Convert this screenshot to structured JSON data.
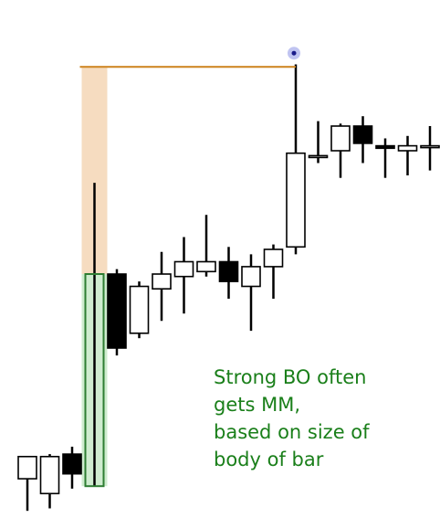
{
  "chart_data": {
    "type": "candlestick",
    "title": "",
    "xlabel": "",
    "ylabel": "",
    "ylim": [
      0,
      100
    ],
    "grid": false,
    "legend": "none",
    "candles": [
      {
        "open": 8.5,
        "high": 13.0,
        "low": 2.0,
        "close": 13.0
      },
      {
        "open": 5.5,
        "high": 13.5,
        "low": 2.5,
        "close": 13.0
      },
      {
        "open": 13.5,
        "high": 15.0,
        "low": 6.5,
        "close": 9.5
      },
      {
        "open": 7.0,
        "high": 68.5,
        "low": 7.0,
        "close": 50.0
      },
      {
        "open": 50.0,
        "high": 51.0,
        "low": 33.5,
        "close": 35.0
      },
      {
        "open": 38.0,
        "high": 48.5,
        "low": 37.0,
        "close": 47.5
      },
      {
        "open": 47.0,
        "high": 54.5,
        "low": 40.5,
        "close": 50.0
      },
      {
        "open": 49.5,
        "high": 57.5,
        "low": 42.0,
        "close": 52.5
      },
      {
        "open": 50.5,
        "high": 62.0,
        "low": 49.5,
        "close": 52.5
      },
      {
        "open": 52.5,
        "high": 55.5,
        "low": 45.0,
        "close": 48.5
      },
      {
        "open": 47.5,
        "high": 54.0,
        "low": 38.5,
        "close": 51.5
      },
      {
        "open": 51.5,
        "high": 56.0,
        "low": 45.0,
        "close": 55.0
      },
      {
        "open": 55.5,
        "high": 92.5,
        "low": 54.0,
        "close": 74.5
      },
      {
        "open": 74.0,
        "high": 81.0,
        "low": 72.5,
        "close": 74.0
      },
      {
        "open": 75.0,
        "high": 80.5,
        "low": 69.5,
        "close": 80.0
      },
      {
        "open": 80.0,
        "high": 82.0,
        "low": 72.5,
        "close": 76.5
      },
      {
        "open": 76.0,
        "high": 77.5,
        "low": 69.5,
        "close": 75.5
      },
      {
        "open": 75.0,
        "high": 78.0,
        "low": 70.0,
        "close": 76.0
      },
      {
        "open": 76.0,
        "high": 80.0,
        "low": 71.0,
        "close": 76.0
      }
    ],
    "breakout_bar_index": 3,
    "measured_move": {
      "body_from": 7.0,
      "body_to": 50.0,
      "projection_to": 92.0
    },
    "annotation": [
      "Strong BO often",
      "gets MM,",
      "based on size of",
      "body of bar"
    ]
  },
  "colors": {
    "bull_body": "#ffffff",
    "bear_body": "#000000",
    "bo_body_highlight": "#cfeccf",
    "bo_body_outline": "#2e7d32",
    "projection_highlight": "#f6dcc0",
    "target_line": "#d08a2a",
    "target_marker": "#4b55d6",
    "annotation_text": "#1a7f1a"
  }
}
